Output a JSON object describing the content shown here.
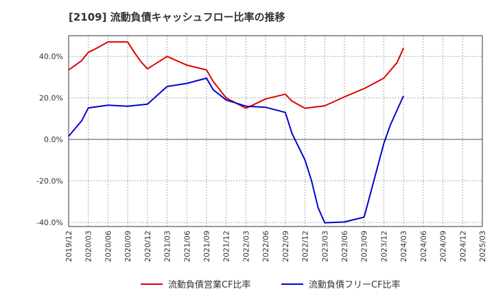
{
  "chart_data": {
    "type": "line",
    "title": "[2109]  流動負債キャッシュフロー比率の推移",
    "x": [
      "2019/12",
      "2020/03",
      "2020/06",
      "2020/09",
      "2020/12",
      "2021/03",
      "2021/06",
      "2021/09",
      "2021/12",
      "2022/03",
      "2022/06",
      "2022/09",
      "2022/12",
      "2023/03",
      "2023/06",
      "2023/09",
      "2023/12",
      "2024/03",
      "2024/06",
      "2024/09",
      "2024/12",
      "2025/03"
    ],
    "y_ticks": [
      "40.0%",
      "20.0%",
      "0.0%",
      "-20.0%",
      "-40.0%"
    ],
    "y_tick_values": [
      40,
      20,
      0,
      -20,
      -40
    ],
    "ylim": [
      -42,
      50
    ],
    "grid": true,
    "legend_position": "bottom",
    "series": [
      {
        "name": "流動負債営業CF比率",
        "color": "#dd0000",
        "points": [
          [
            "2019/12",
            33.5
          ],
          [
            "2020/02",
            38.0
          ],
          [
            "2020/03",
            42.0
          ],
          [
            "2020/04",
            43.5
          ],
          [
            "2020/06",
            47.0
          ],
          [
            "2020/09",
            47.0
          ],
          [
            "2020/10",
            42.0
          ],
          [
            "2020/11",
            37.5
          ],
          [
            "2020/12",
            34.0
          ],
          [
            "2021/03",
            40.0
          ],
          [
            "2021/06",
            35.8
          ],
          [
            "2021/09",
            33.5
          ],
          [
            "2021/10",
            28.0
          ],
          [
            "2021/11",
            24.0
          ],
          [
            "2021/12",
            20.0
          ],
          [
            "2022/03",
            15.0
          ],
          [
            "2022/06",
            19.5
          ],
          [
            "2022/09",
            21.8
          ],
          [
            "2022/10",
            18.5
          ],
          [
            "2022/12",
            15.0
          ],
          [
            "2023/03",
            16.2
          ],
          [
            "2023/06",
            20.5
          ],
          [
            "2023/09",
            24.5
          ],
          [
            "2023/12",
            29.5
          ],
          [
            "2024/02",
            37.0
          ],
          [
            "2024/03",
            44.0
          ]
        ]
      },
      {
        "name": "流動負債フリーCF比率",
        "color": "#0000cc",
        "points": [
          [
            "2019/12",
            1.5
          ],
          [
            "2020/02",
            9.0
          ],
          [
            "2020/03",
            15.2
          ],
          [
            "2020/06",
            16.5
          ],
          [
            "2020/09",
            16.0
          ],
          [
            "2020/12",
            17.0
          ],
          [
            "2021/03",
            25.5
          ],
          [
            "2021/06",
            27.0
          ],
          [
            "2021/09",
            29.5
          ],
          [
            "2021/10",
            24.0
          ],
          [
            "2021/12",
            19.0
          ],
          [
            "2022/03",
            16.0
          ],
          [
            "2022/06",
            15.5
          ],
          [
            "2022/09",
            13.0
          ],
          [
            "2022/10",
            3.0
          ],
          [
            "2022/12",
            -10.0
          ],
          [
            "2023/01",
            -20.0
          ],
          [
            "2023/02",
            -33.0
          ],
          [
            "2023/03",
            -40.2
          ],
          [
            "2023/06",
            -39.8
          ],
          [
            "2023/09",
            -37.5
          ],
          [
            "2023/12",
            -2.0
          ],
          [
            "2024/01",
            7.0
          ],
          [
            "2024/03",
            21.0
          ]
        ]
      }
    ]
  }
}
